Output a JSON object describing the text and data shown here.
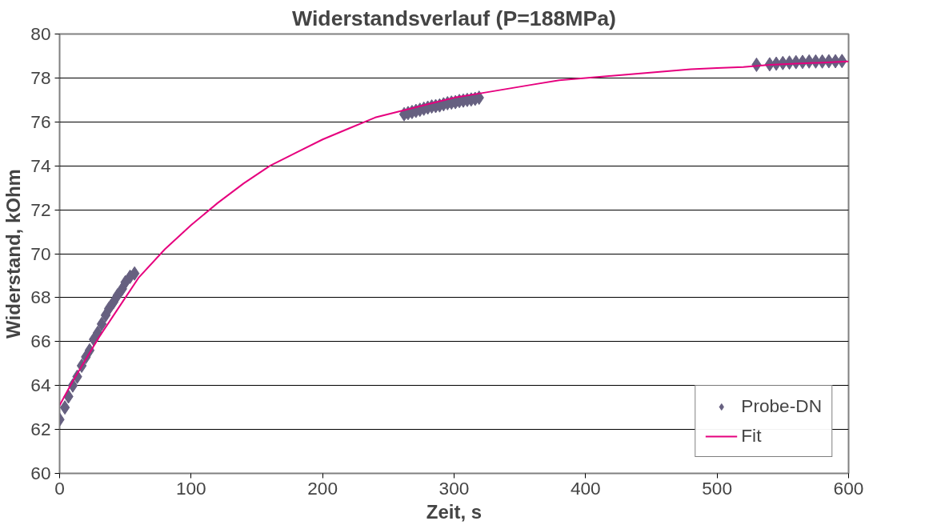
{
  "chart_data": {
    "type": "scatter",
    "title": "Widerstandsverlauf (P=188MPa)",
    "xlabel": "Zeit, s",
    "ylabel": "Widerstand, kOhm",
    "xlim": [
      0,
      600
    ],
    "xticks": [
      0,
      100,
      200,
      300,
      400,
      500,
      600
    ],
    "ylim": [
      60,
      80
    ],
    "yticks": [
      60,
      62,
      64,
      66,
      68,
      70,
      72,
      74,
      76,
      78,
      80
    ],
    "grid": "y",
    "legend": "bottom right",
    "series": [
      {
        "name": "Probe-DN",
        "color": "#666080",
        "marker": "diamond",
        "x": [
          0,
          4,
          6.7,
          10,
          13.4,
          16.8,
          20,
          22.8,
          26,
          29,
          32,
          35,
          37.5,
          41,
          44,
          47.6,
          50,
          53.6,
          57,
          262,
          265,
          268,
          271,
          274,
          277,
          280,
          283,
          286,
          289,
          292,
          295,
          298,
          301,
          304,
          307,
          310,
          313,
          316,
          319,
          530,
          540,
          545,
          550,
          555,
          560,
          565,
          570,
          575,
          580,
          585,
          590,
          595
        ],
        "values": [
          62.45,
          63.0,
          63.5,
          64.0,
          64.4,
          64.9,
          65.3,
          65.6,
          66.1,
          66.4,
          66.8,
          67.2,
          67.5,
          67.8,
          68.1,
          68.4,
          68.7,
          68.95,
          69.1,
          76.35,
          76.4,
          76.45,
          76.5,
          76.55,
          76.6,
          76.65,
          76.7,
          76.72,
          76.75,
          76.8,
          76.85,
          76.88,
          76.9,
          76.95,
          76.97,
          77.0,
          77.02,
          77.05,
          77.1,
          78.6,
          78.62,
          78.65,
          78.68,
          78.7,
          78.72,
          78.73,
          78.75,
          78.75,
          78.75,
          78.76,
          78.76,
          78.77
        ]
      },
      {
        "name": "Fit",
        "type": "line",
        "color": "#e6007e",
        "line_style": "solid",
        "x": [
          0,
          10,
          20,
          30,
          40,
          50,
          60,
          80,
          100,
          120,
          140,
          160,
          180,
          200,
          220,
          240,
          260,
          280,
          300,
          320,
          340,
          360,
          380,
          400,
          420,
          440,
          460,
          480,
          500,
          520,
          540,
          560,
          580,
          600
        ],
        "values": [
          63.1,
          64.2,
          65.2,
          66.2,
          67.1,
          68.0,
          68.9,
          70.2,
          71.3,
          72.3,
          73.2,
          74.0,
          74.6,
          75.2,
          75.7,
          76.2,
          76.5,
          76.8,
          77.1,
          77.3,
          77.5,
          77.7,
          77.9,
          78.0,
          78.1,
          78.2,
          78.3,
          78.4,
          78.45,
          78.5,
          78.6,
          78.65,
          78.7,
          78.75
        ]
      }
    ]
  }
}
